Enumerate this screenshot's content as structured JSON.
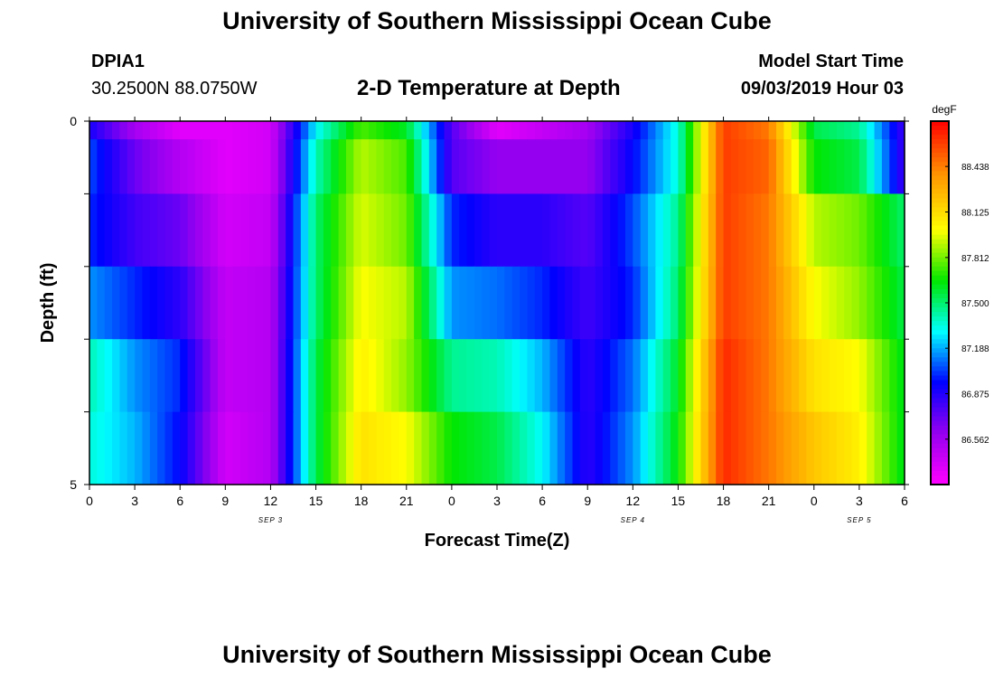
{
  "header": {
    "title": "University of Southern Mississippi Ocean Cube",
    "station_id": "DPIA1",
    "station_coords": "30.2500N 88.0750W",
    "plot_title": "2-D Temperature at Depth",
    "model_start_label": "Model Start Time",
    "model_start_value": "09/03/2019 Hour 03"
  },
  "footer": {
    "title": "University of Southern Mississippi Ocean Cube"
  },
  "chart_data": {
    "type": "heatmap",
    "title": "2-D Temperature at Depth",
    "xlabel": "Forecast Time(Z)",
    "ylabel": "Depth (ft)",
    "x_tick_labels": [
      "0",
      "3",
      "6",
      "9",
      "12",
      "15",
      "18",
      "21",
      "0",
      "3",
      "6",
      "9",
      "12",
      "15",
      "18",
      "21",
      "0",
      "3",
      "6"
    ],
    "x_tick_hours": [
      0,
      3,
      6,
      9,
      12,
      15,
      18,
      21,
      24,
      27,
      30,
      33,
      36,
      39,
      42,
      45,
      48,
      51,
      54
    ],
    "date_labels": [
      {
        "text": "SEP 3",
        "hour": 12
      },
      {
        "text": "SEP 4",
        "hour": 36
      },
      {
        "text": "SEP 5",
        "hour": 51
      }
    ],
    "y_tick_labels": [
      "0",
      "5"
    ],
    "ylim": [
      0,
      5
    ],
    "xlim": [
      0,
      54
    ],
    "colorbar": {
      "unit": "degF",
      "tick_labels": [
        "86.562",
        "86.875",
        "87.188",
        "87.500",
        "87.812",
        "88.125",
        "88.438"
      ],
      "range": [
        86.25,
        88.75
      ]
    },
    "depth_levels_ft": [
      0,
      0.5,
      1.5,
      2.5,
      3.5,
      4.5
    ],
    "hours": [
      0,
      3,
      6,
      9,
      12,
      15,
      18,
      21,
      24,
      27,
      30,
      33,
      36,
      39,
      42,
      45,
      48,
      51,
      54
    ],
    "values_degF": [
      [
        86.9,
        86.55,
        86.35,
        86.35,
        86.4,
        87.3,
        87.75,
        87.6,
        86.75,
        86.35,
        86.45,
        86.55,
        86.9,
        87.35,
        88.6,
        88.45,
        87.55,
        87.45,
        86.8
      ],
      [
        87.05,
        86.7,
        86.5,
        86.35,
        86.4,
        87.4,
        87.9,
        87.75,
        86.75,
        86.6,
        86.6,
        86.6,
        86.95,
        87.35,
        88.6,
        88.5,
        87.65,
        87.55,
        86.8
      ],
      [
        87.0,
        86.8,
        86.7,
        86.4,
        86.45,
        87.5,
        87.95,
        87.8,
        87.0,
        86.85,
        86.85,
        86.75,
        87.05,
        87.45,
        88.6,
        88.45,
        87.9,
        87.8,
        87.5
      ],
      [
        87.15,
        87.0,
        86.85,
        86.45,
        86.5,
        87.5,
        88.0,
        87.9,
        87.15,
        87.1,
        87.0,
        86.8,
        87.0,
        87.5,
        88.6,
        88.45,
        88.0,
        87.85,
        87.55
      ],
      [
        87.4,
        87.15,
        87.0,
        86.45,
        86.5,
        87.55,
        88.05,
        87.85,
        87.45,
        87.4,
        87.2,
        86.85,
        87.1,
        87.6,
        88.65,
        88.45,
        88.1,
        88.0,
        87.6
      ],
      [
        87.35,
        87.2,
        86.95,
        86.4,
        86.5,
        87.55,
        88.1,
        88.0,
        87.65,
        87.55,
        87.3,
        86.85,
        87.15,
        87.65,
        88.65,
        88.45,
        88.2,
        88.05,
        87.6
      ]
    ]
  }
}
